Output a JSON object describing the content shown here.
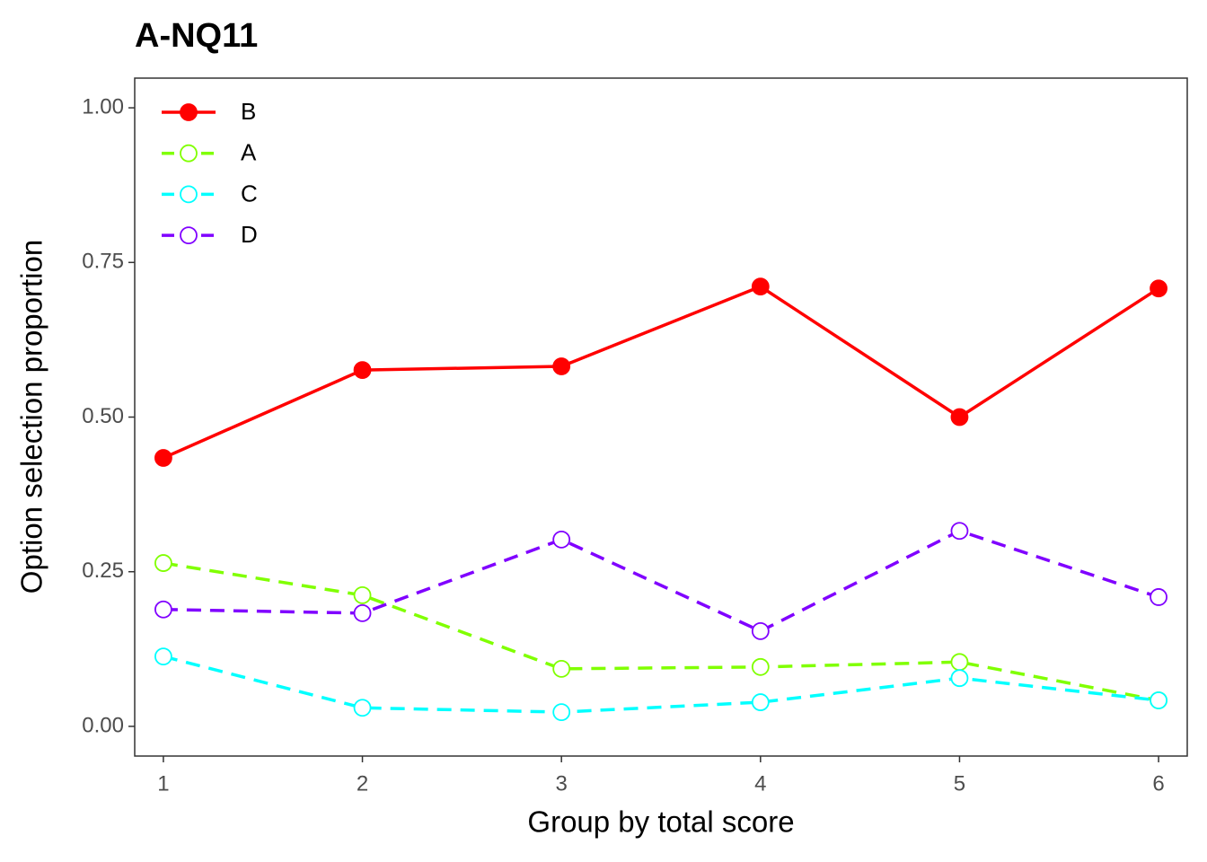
{
  "chart_data": {
    "type": "line",
    "title": "A-NQ11",
    "x_label": "Group by total score",
    "y_label": "Option selection proportion",
    "x": [
      1,
      2,
      3,
      4,
      5,
      6
    ],
    "series": [
      {
        "name": "B",
        "color": "#ff0000",
        "dashed": false,
        "marker": "filled",
        "values": [
          0.434,
          0.576,
          0.582,
          0.711,
          0.5,
          0.708
        ]
      },
      {
        "name": "A",
        "color": "#80ff00",
        "dashed": true,
        "marker": "open",
        "values": [
          0.264,
          0.212,
          0.093,
          0.096,
          0.104,
          0.042
        ]
      },
      {
        "name": "C",
        "color": "#00ffff",
        "dashed": true,
        "marker": "open",
        "values": [
          0.113,
          0.03,
          0.023,
          0.039,
          0.078,
          0.042
        ]
      },
      {
        "name": "D",
        "color": "#8000ff",
        "dashed": true,
        "marker": "open",
        "values": [
          0.189,
          0.183,
          0.302,
          0.154,
          0.316,
          0.209
        ]
      }
    ],
    "xlim": [
      0.856,
      6.144
    ],
    "xticks": [
      1,
      2,
      3,
      4,
      5,
      6
    ],
    "ylim": [
      -0.048,
      1.048
    ],
    "yticks": [
      {
        "value": 0,
        "label": "0.00"
      },
      {
        "value": 0.25,
        "label": "0.25"
      },
      {
        "value": 0.5,
        "label": "0.50"
      },
      {
        "value": 0.75,
        "label": "0.75"
      },
      {
        "value": 1,
        "label": "1.00"
      }
    ],
    "legend": "top-left",
    "grid": false
  }
}
